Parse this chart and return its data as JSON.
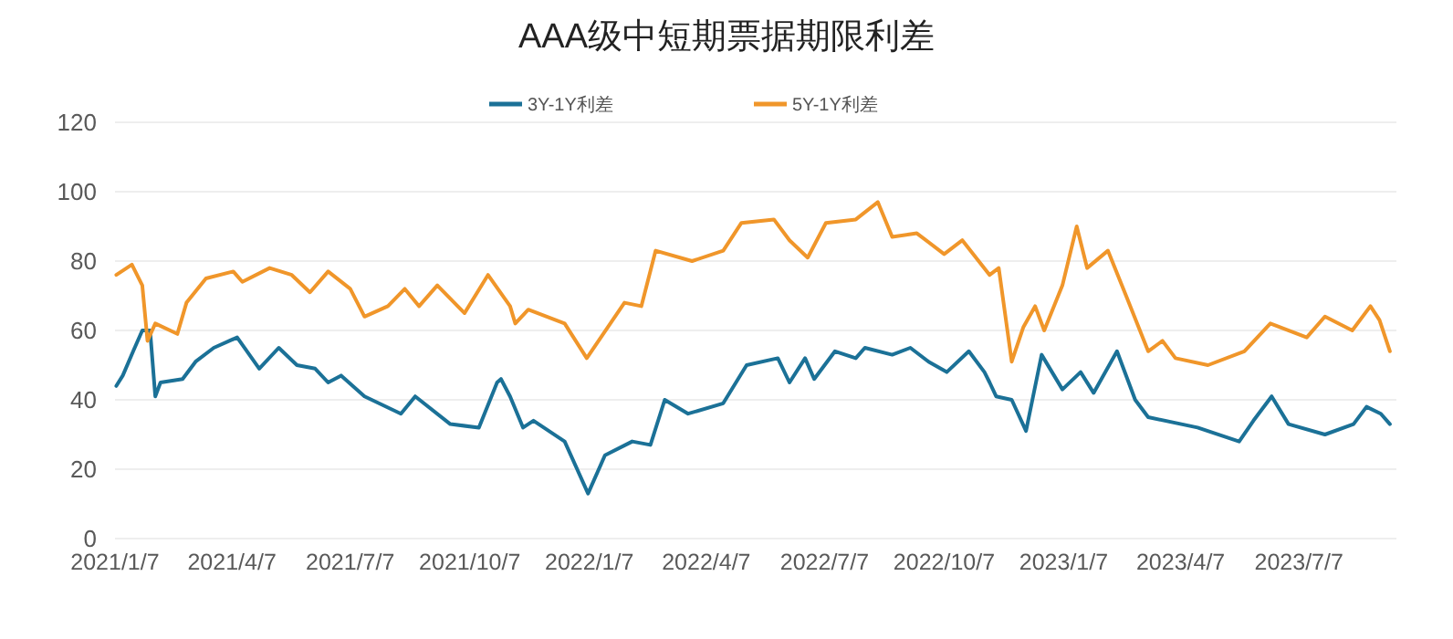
{
  "chart_data": {
    "type": "line",
    "title": "AAA级中短期票据期限利差",
    "series": [
      {
        "name": "3Y-1Y利差",
        "color": "#1b7197",
        "x": [
          "2021-01-08",
          "2021-01-13",
          "2021-01-21",
          "2021-01-28",
          "2021-02-03",
          "2021-02-07",
          "2021-02-11",
          "2021-02-28",
          "2021-03-10",
          "2021-03-24",
          "2021-04-11",
          "2021-04-28",
          "2021-05-13",
          "2021-05-27",
          "2021-06-10",
          "2021-06-20",
          "2021-06-30",
          "2021-07-18",
          "2021-08-15",
          "2021-08-26",
          "2021-09-22",
          "2021-10-14",
          "2021-10-28",
          "2021-10-31",
          "2021-11-07",
          "2021-11-17",
          "2021-11-25",
          "2021-12-19",
          "2022-01-06",
          "2022-01-19",
          "2022-02-09",
          "2022-02-23",
          "2022-03-06",
          "2022-03-24",
          "2022-04-20",
          "2022-05-08",
          "2022-06-01",
          "2022-06-10",
          "2022-06-22",
          "2022-06-29",
          "2022-07-15",
          "2022-07-31",
          "2022-08-07",
          "2022-08-28",
          "2022-09-11",
          "2022-09-25",
          "2022-10-09",
          "2022-10-26",
          "2022-11-07",
          "2022-11-11",
          "2022-11-16",
          "2022-11-28",
          "2022-12-09",
          "2022-12-21",
          "2023-01-06",
          "2023-01-20",
          "2023-01-30",
          "2023-02-17",
          "2023-03-03",
          "2023-03-13",
          "2023-04-20",
          "2023-05-22",
          "2023-06-02",
          "2023-06-16",
          "2023-06-29",
          "2023-07-27",
          "2023-08-18",
          "2023-08-28",
          "2023-09-08",
          "2023-09-15"
        ],
        "values": [
          44,
          47,
          54,
          60,
          60,
          41,
          45,
          46,
          51,
          55,
          58,
          49,
          55,
          50,
          49,
          45,
          47,
          41,
          36,
          41,
          33,
          32,
          45,
          46,
          41,
          32,
          34,
          28,
          13,
          24,
          28,
          27,
          40,
          36,
          39,
          50,
          52,
          45,
          52,
          46,
          54,
          52,
          55,
          53,
          55,
          51,
          48,
          54,
          48,
          45,
          41,
          40,
          31,
          53,
          43,
          48,
          42,
          54,
          40,
          35,
          32,
          28,
          34,
          41,
          33,
          30,
          33,
          38,
          36,
          33
        ]
      },
      {
        "name": "5Y-1Y利差",
        "color": "#f0962a",
        "x": [
          "2021-01-08",
          "2021-01-20",
          "2021-01-28",
          "2021-02-01",
          "2021-02-07",
          "2021-02-24",
          "2021-03-03",
          "2021-03-18",
          "2021-04-08",
          "2021-04-15",
          "2021-05-06",
          "2021-05-23",
          "2021-06-06",
          "2021-06-20",
          "2021-07-07",
          "2021-07-18",
          "2021-08-05",
          "2021-08-18",
          "2021-08-29",
          "2021-09-12",
          "2021-10-03",
          "2021-10-21",
          "2021-11-07",
          "2021-11-11",
          "2021-11-21",
          "2021-12-19",
          "2022-01-05",
          "2022-02-03",
          "2022-02-16",
          "2022-02-27",
          "2022-03-27",
          "2022-04-20",
          "2022-05-04",
          "2022-05-29",
          "2022-06-10",
          "2022-06-24",
          "2022-07-08",
          "2022-07-31",
          "2022-08-17",
          "2022-08-28",
          "2022-09-16",
          "2022-10-07",
          "2022-10-21",
          "2022-11-11",
          "2022-11-18",
          "2022-11-28",
          "2022-12-07",
          "2022-12-16",
          "2022-12-23",
          "2023-01-06",
          "2023-01-17",
          "2023-01-25",
          "2023-02-10",
          "2023-02-24",
          "2023-03-13",
          "2023-03-24",
          "2023-04-03",
          "2023-04-28",
          "2023-05-26",
          "2023-06-15",
          "2023-07-13",
          "2023-07-27",
          "2023-08-17",
          "2023-08-31",
          "2023-09-07",
          "2023-09-15"
        ],
        "values": [
          76,
          79,
          73,
          57,
          62,
          59,
          68,
          75,
          77,
          74,
          78,
          76,
          71,
          77,
          72,
          64,
          67,
          72,
          67,
          73,
          65,
          76,
          67,
          62,
          66,
          62,
          52,
          68,
          67,
          83,
          80,
          83,
          91,
          92,
          86,
          81,
          91,
          92,
          97,
          87,
          88,
          82,
          86,
          76,
          78,
          51,
          61,
          67,
          60,
          73,
          90,
          78,
          83,
          70,
          54,
          57,
          52,
          50,
          54,
          62,
          58,
          64,
          60,
          67,
          63,
          54
        ]
      }
    ],
    "xlim": [
      "2021-01-07",
      "2023-09-20"
    ],
    "xticks": [
      {
        "value": "2021-01-07",
        "label": "2021/1/7"
      },
      {
        "value": "2021-04-07",
        "label": "2021/4/7"
      },
      {
        "value": "2021-07-07",
        "label": "2021/7/7"
      },
      {
        "value": "2021-10-07",
        "label": "2021/10/7"
      },
      {
        "value": "2022-01-07",
        "label": "2022/1/7"
      },
      {
        "value": "2022-04-07",
        "label": "2022/4/7"
      },
      {
        "value": "2022-07-07",
        "label": "2022/7/7"
      },
      {
        "value": "2022-10-07",
        "label": "2022/10/7"
      },
      {
        "value": "2023-01-07",
        "label": "2023/1/7"
      },
      {
        "value": "2023-04-07",
        "label": "2023/4/7"
      },
      {
        "value": "2023-07-07",
        "label": "2023/7/7"
      }
    ],
    "ylim": [
      0,
      120
    ],
    "yticks": [
      0,
      20,
      40,
      60,
      80,
      100,
      120
    ],
    "grid": "y",
    "legend": "top",
    "marker": "none",
    "line_style": "solid"
  }
}
